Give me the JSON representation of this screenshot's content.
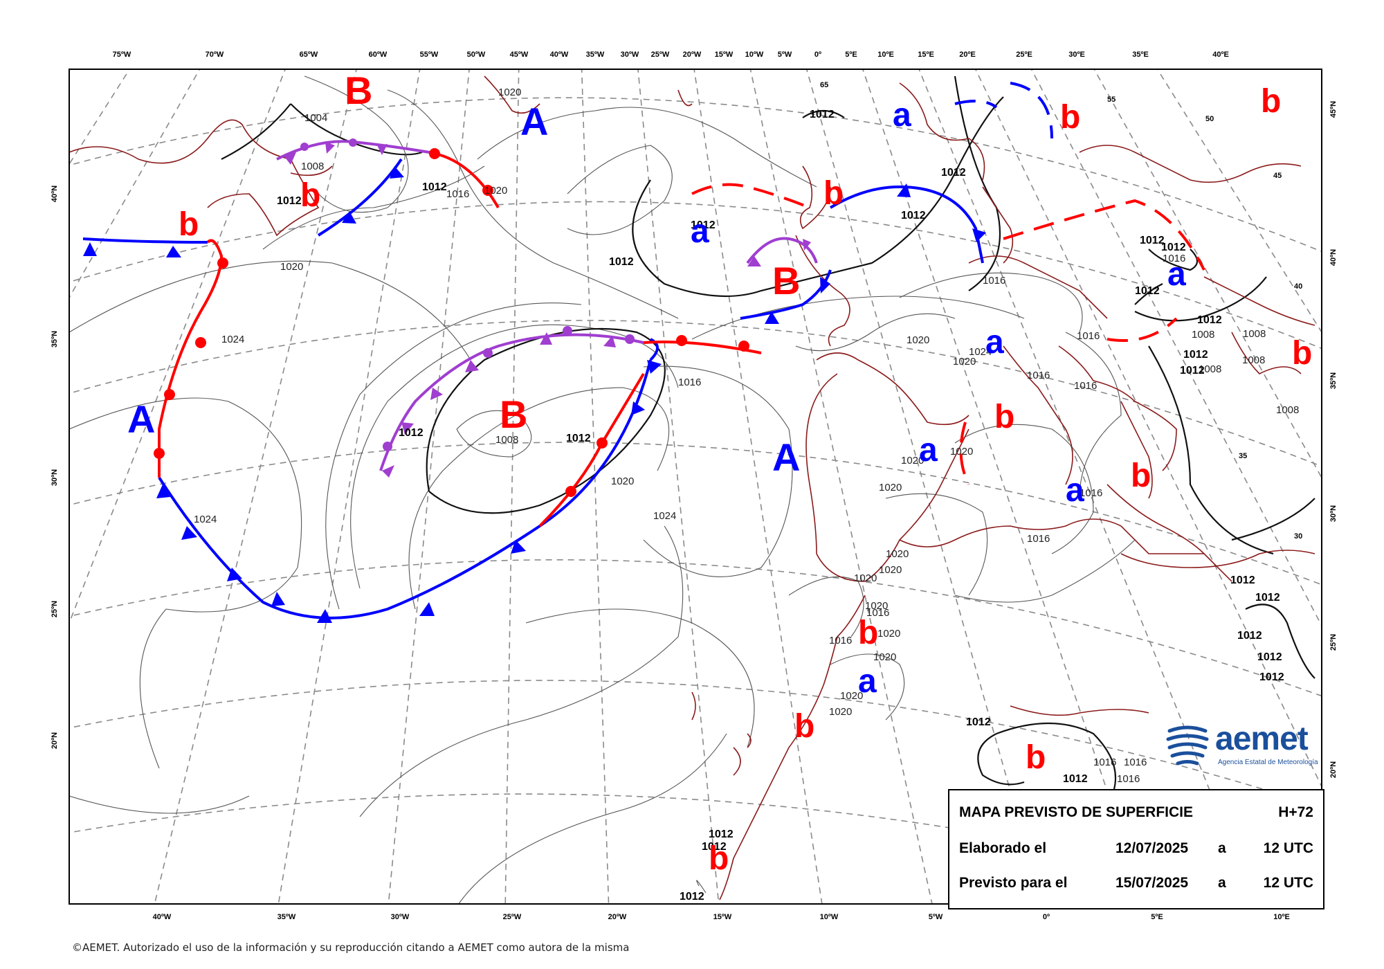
{
  "map": {
    "top_lon_labels": [
      "75ºW",
      "70ºW",
      "65ºW",
      "60ºW",
      "55ºW",
      "50ºW",
      "45ºW",
      "40ºW",
      "35ºW",
      "30ºW",
      "25ºW",
      "20ºW",
      "15ºW",
      "10ºW",
      "5ºW",
      "0º",
      "5ºE",
      "10ºE",
      "15ºE",
      "20ºE",
      "25ºE",
      "30ºE",
      "35ºE",
      "40ºE"
    ],
    "bottom_lon_labels": [
      "40ºW",
      "35ºW",
      "30ºW",
      "25ºW",
      "20ºW",
      "15ºW",
      "10ºW",
      "5ºW",
      "0º",
      "5ºE",
      "10ºE"
    ],
    "left_lat_labels": [
      "40ºN",
      "35ºN",
      "30ºN",
      "25ºN",
      "20ºN"
    ],
    "right_lat_labels": [
      "45ºN",
      "40ºN",
      "35ºN",
      "30ºN",
      "25ºN",
      "20ºN"
    ],
    "inner_lat_labels": [
      "65",
      "55",
      "50",
      "45",
      "40",
      "35",
      "30"
    ],
    "isobar_labels": {
      "v1004": "1004",
      "v1008": "1008",
      "v1012": "1012",
      "v1016": "1016",
      "v1020": "1020",
      "v1024": "1024"
    },
    "pressure_centres": {
      "high_big": "A",
      "low_big": "B",
      "high_small": "a",
      "low_small": "b"
    }
  },
  "info": {
    "title": "MAPA PREVISTO DE SUPERFICIE",
    "lead": "H+72",
    "made_label": "Elaborado el",
    "made_date": "12/07/2025",
    "made_at": "a",
    "made_time": "12 UTC",
    "valid_label": "Previsto para el",
    "valid_date": "15/07/2025",
    "valid_at": "a",
    "valid_time": "12 UTC"
  },
  "logo": {
    "name": "aemet",
    "subtitle": "Agencia Estatal de Meteorología"
  },
  "copyright": "©AEMET. Autorizado el uso de la información y su reproducción citando a AEMET como autora de la misma",
  "colors": {
    "warm_front": "#ff0000",
    "cold_front": "#0000ff",
    "occluded_front": "#a03ed0",
    "coastline": "#8b1a1a",
    "logo": "#1a4f9c"
  }
}
